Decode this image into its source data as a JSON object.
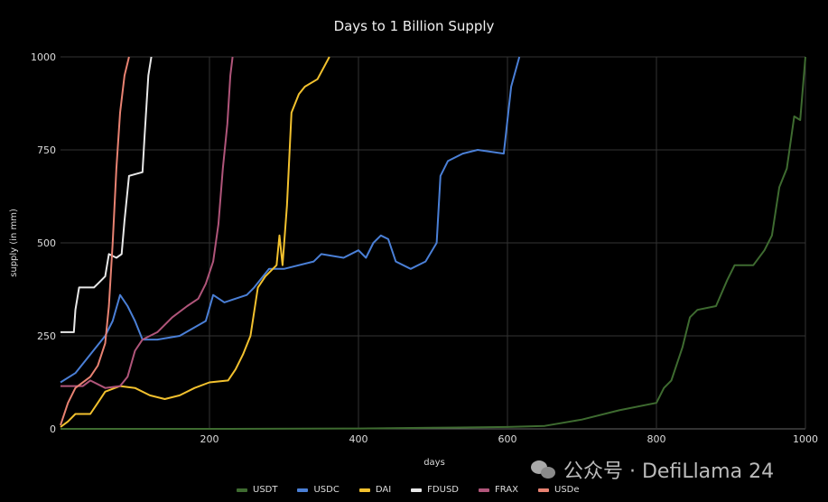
{
  "chart_data": {
    "type": "line",
    "title": "Days to 1 Billion Supply",
    "xlabel": "days",
    "ylabel": "supply (in mm)",
    "xlim": [
      0,
      1000
    ],
    "ylim": [
      0,
      1000
    ],
    "xticks": [
      200,
      400,
      600,
      800,
      1000
    ],
    "yticks": [
      0,
      250,
      500,
      750,
      1000
    ],
    "grid": true,
    "legend_position": "bottom",
    "series": [
      {
        "name": "USDT",
        "color": "#3e6b30",
        "points": [
          [
            0,
            0
          ],
          [
            200,
            0
          ],
          [
            400,
            1
          ],
          [
            500,
            3
          ],
          [
            600,
            5
          ],
          [
            650,
            8
          ],
          [
            700,
            25
          ],
          [
            750,
            50
          ],
          [
            800,
            70
          ],
          [
            810,
            110
          ],
          [
            820,
            130
          ],
          [
            835,
            220
          ],
          [
            845,
            300
          ],
          [
            855,
            320
          ],
          [
            880,
            330
          ],
          [
            895,
            400
          ],
          [
            905,
            440
          ],
          [
            930,
            440
          ],
          [
            945,
            480
          ],
          [
            955,
            520
          ],
          [
            965,
            650
          ],
          [
            975,
            700
          ],
          [
            985,
            840
          ],
          [
            993,
            830
          ],
          [
            1000,
            1000
          ]
        ]
      },
      {
        "name": "USDC",
        "color": "#4a7fd6",
        "points": [
          [
            0,
            125
          ],
          [
            20,
            150
          ],
          [
            40,
            200
          ],
          [
            60,
            250
          ],
          [
            70,
            290
          ],
          [
            80,
            360
          ],
          [
            90,
            330
          ],
          [
            100,
            290
          ],
          [
            110,
            240
          ],
          [
            130,
            240
          ],
          [
            160,
            250
          ],
          [
            195,
            290
          ],
          [
            205,
            360
          ],
          [
            220,
            340
          ],
          [
            250,
            360
          ],
          [
            260,
            380
          ],
          [
            280,
            430
          ],
          [
            300,
            430
          ],
          [
            340,
            450
          ],
          [
            350,
            470
          ],
          [
            380,
            460
          ],
          [
            400,
            480
          ],
          [
            410,
            460
          ],
          [
            420,
            500
          ],
          [
            430,
            520
          ],
          [
            440,
            510
          ],
          [
            450,
            450
          ],
          [
            470,
            430
          ],
          [
            490,
            450
          ],
          [
            505,
            500
          ],
          [
            510,
            680
          ],
          [
            520,
            720
          ],
          [
            540,
            740
          ],
          [
            560,
            750
          ],
          [
            595,
            740
          ],
          [
            605,
            920
          ],
          [
            616,
            1000
          ]
        ]
      },
      {
        "name": "DAI",
        "color": "#f2c12e",
        "points": [
          [
            0,
            5
          ],
          [
            10,
            20
          ],
          [
            20,
            40
          ],
          [
            40,
            40
          ],
          [
            50,
            70
          ],
          [
            60,
            100
          ],
          [
            80,
            115
          ],
          [
            100,
            110
          ],
          [
            120,
            90
          ],
          [
            140,
            80
          ],
          [
            160,
            90
          ],
          [
            180,
            110
          ],
          [
            200,
            125
          ],
          [
            225,
            130
          ],
          [
            235,
            160
          ],
          [
            245,
            200
          ],
          [
            255,
            250
          ],
          [
            265,
            380
          ],
          [
            275,
            410
          ],
          [
            290,
            440
          ],
          [
            294,
            520
          ],
          [
            298,
            440
          ],
          [
            304,
            600
          ],
          [
            310,
            850
          ],
          [
            320,
            900
          ],
          [
            328,
            920
          ],
          [
            345,
            940
          ],
          [
            361,
            1000
          ]
        ]
      },
      {
        "name": "FDUSD",
        "color": "#e8e8e8",
        "points": [
          [
            0,
            260
          ],
          [
            18,
            260
          ],
          [
            20,
            320
          ],
          [
            25,
            380
          ],
          [
            45,
            380
          ],
          [
            50,
            390
          ],
          [
            60,
            410
          ],
          [
            65,
            470
          ],
          [
            75,
            460
          ],
          [
            82,
            470
          ],
          [
            86,
            560
          ],
          [
            92,
            680
          ],
          [
            110,
            690
          ],
          [
            113,
            790
          ],
          [
            118,
            950
          ],
          [
            122,
            1000
          ]
        ]
      },
      {
        "name": "FRAX",
        "color": "#b0557a",
        "points": [
          [
            0,
            115
          ],
          [
            30,
            115
          ],
          [
            40,
            130
          ],
          [
            60,
            110
          ],
          [
            80,
            115
          ],
          [
            90,
            140
          ],
          [
            100,
            210
          ],
          [
            110,
            240
          ],
          [
            130,
            260
          ],
          [
            150,
            300
          ],
          [
            170,
            330
          ],
          [
            185,
            350
          ],
          [
            195,
            390
          ],
          [
            205,
            450
          ],
          [
            212,
            550
          ],
          [
            218,
            700
          ],
          [
            224,
            820
          ],
          [
            228,
            950
          ],
          [
            231,
            1000
          ]
        ]
      },
      {
        "name": "USDe",
        "color": "#e88272",
        "points": [
          [
            0,
            10
          ],
          [
            10,
            70
          ],
          [
            20,
            110
          ],
          [
            40,
            140
          ],
          [
            50,
            170
          ],
          [
            60,
            230
          ],
          [
            65,
            330
          ],
          [
            70,
            500
          ],
          [
            75,
            700
          ],
          [
            80,
            850
          ],
          [
            86,
            950
          ],
          [
            92,
            1000
          ]
        ]
      }
    ]
  },
  "watermark": {
    "text": "公众号 · DefiLlama 24"
  }
}
